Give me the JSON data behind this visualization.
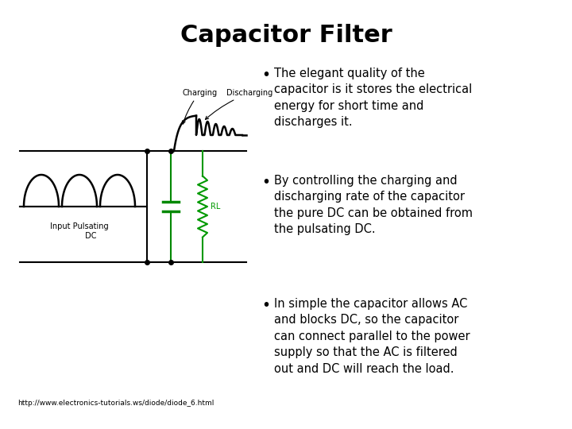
{
  "title": "Capacitor Filter",
  "title_fontsize": 22,
  "title_fontweight": "bold",
  "background_color": "#ffffff",
  "url_text": "http://www.electronics-tutorials.ws/diode/diode_6.html",
  "url_fontsize": 6.5,
  "bullet_points": [
    "The elegant quality of the\ncapacitor is it stores the electrical\nenergy for short time and\ndischarges it.",
    "By controlling the charging and\ndischarging rate of the capacitor\nthe pure DC can be obtained from\nthe pulsating DC.",
    "In simple the capacitor allows AC\nand blocks DC, so the capacitor\ncan connect parallel to the power\nsupply so that the AC is filtered\nout and DC will reach the load."
  ],
  "bullet_fontsize": 10.5,
  "rl_color": "#009900",
  "cap_color": "#008800"
}
